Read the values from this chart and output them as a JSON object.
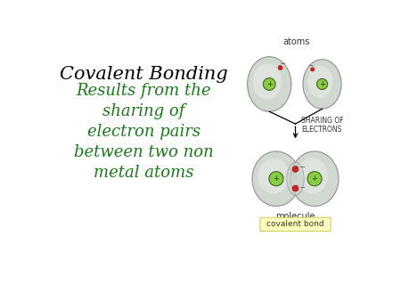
{
  "background_color": "#ffffff",
  "title_text": "Covalent Bonding",
  "title_color": "#000000",
  "title_fontsize": 15,
  "body_text": "Results from the\nsharing of\nelectron pairs\nbetween two non\nmetal atoms",
  "body_color": "#1a7a1a",
  "body_fontsize": 13,
  "atoms_label": "atoms",
  "molecule_label": "molecule",
  "sharing_label": "SHARING OF\nELECTRONS",
  "bond_label": "covalent bond",
  "bond_box_color": "#ffffbb",
  "atom_fill_color": "#d0d8d0",
  "atom_border_color": "#909090",
  "nucleus_color": "#88cc44",
  "nucleus_border": "#446622",
  "electron_color": "#cc2222",
  "minus_color": "#444444",
  "label_color": "#333333"
}
